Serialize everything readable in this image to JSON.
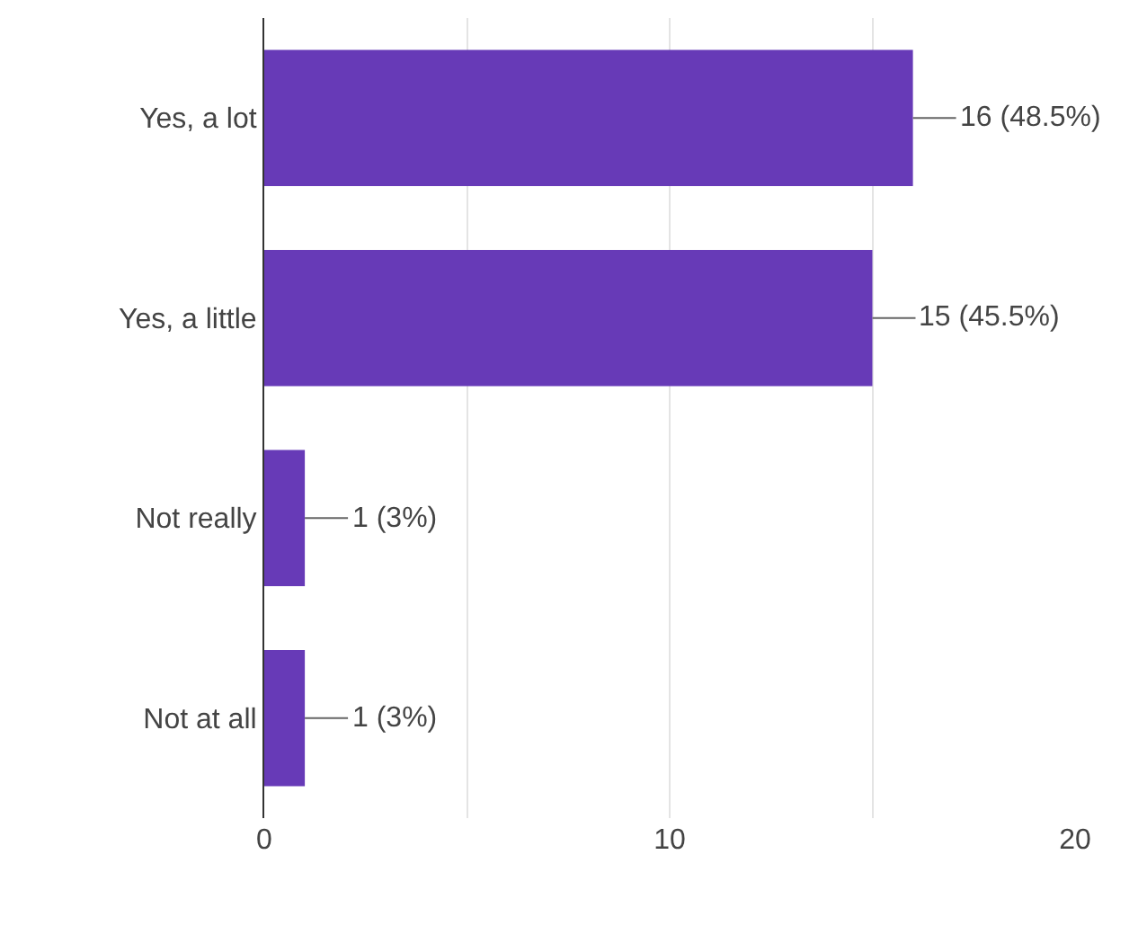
{
  "chart_data": {
    "type": "bar",
    "orientation": "horizontal",
    "categories": [
      "Yes, a lot",
      "Yes, a little",
      "Not really",
      "Not at all"
    ],
    "values": [
      16,
      15,
      1,
      1
    ],
    "value_labels": [
      "16 (48.5%)",
      "15 (45.5%)",
      "1 (3%)",
      "1 (3%)"
    ],
    "color": "#673ab7",
    "xlim": [
      0,
      20
    ],
    "xticks": [
      0,
      {
        "value": 5,
        "label": null
      },
      10,
      {
        "value": 15,
        "label": null
      },
      20
    ],
    "grid": "x",
    "legend": false
  }
}
